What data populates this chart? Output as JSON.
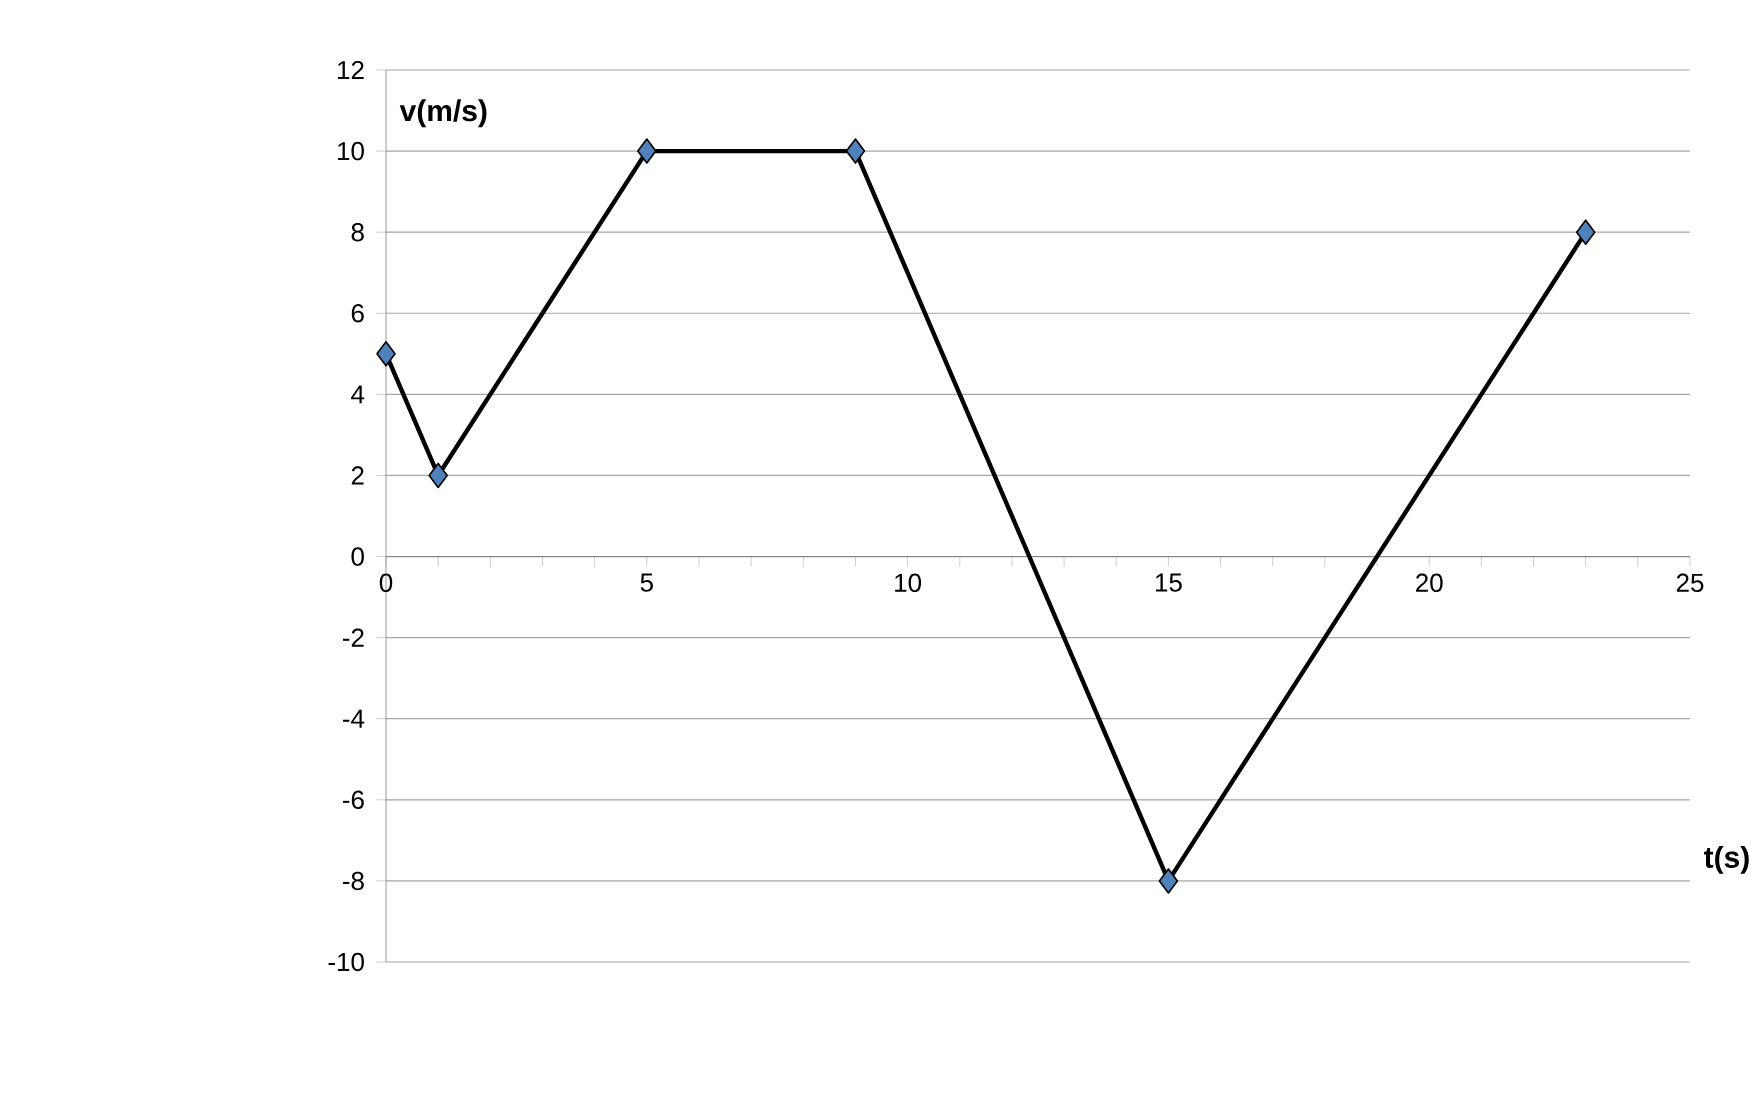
{
  "chart_data": {
    "type": "line",
    "xlabel": "t(s)",
    "ylabel": "v(m/s)",
    "x": [
      0,
      1,
      5,
      9,
      15,
      23
    ],
    "series": [
      {
        "color": "#4f81bd",
        "values": [
          5,
          2,
          10,
          10,
          -8,
          8
        ]
      }
    ],
    "xlim": [
      0,
      25
    ],
    "xticks": [
      0,
      5,
      10,
      15,
      20,
      25
    ],
    "ylim": [
      -10,
      12
    ],
    "yticks": [
      -10,
      -8,
      -6,
      -4,
      -2,
      0,
      2,
      4,
      6,
      8,
      10,
      12
    ],
    "grid": "y",
    "marker": "diamond",
    "line_style": "solid"
  }
}
